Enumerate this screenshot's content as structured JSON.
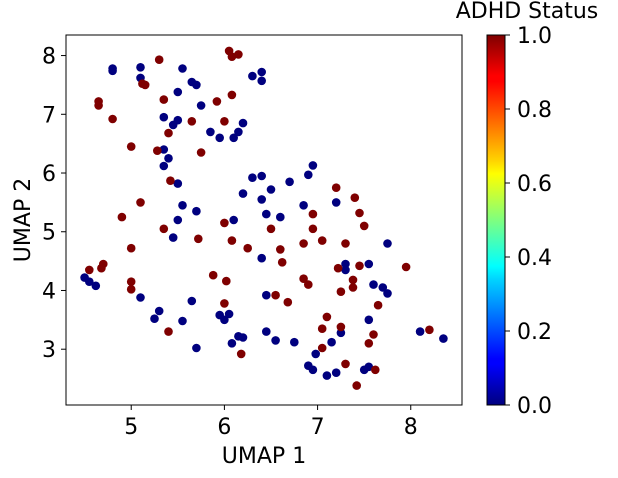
{
  "chart_data": {
    "type": "scatter",
    "title": "",
    "xlabel": "UMAP 1",
    "ylabel": "UMAP 2",
    "xlim": [
      4.3,
      8.55
    ],
    "ylim": [
      2.05,
      8.35
    ],
    "xticks": [
      5,
      6,
      7,
      8
    ],
    "yticks": [
      3,
      4,
      5,
      6,
      7,
      8
    ],
    "grid": false,
    "colorbar": {
      "label": "ADHD Status",
      "range": [
        0.0,
        1.0
      ],
      "ticks": [
        "0.0",
        "0.2",
        "0.4",
        "0.6",
        "0.8",
        "1.0"
      ],
      "colormap": "jet",
      "low_color": "#00007f",
      "high_color": "#7f0000"
    },
    "series": [
      {
        "value": 0,
        "points": [
          [
            4.8,
            7.78
          ],
          [
            4.8,
            7.74
          ],
          [
            5.1,
            7.8
          ],
          [
            5.1,
            7.62
          ],
          [
            5.55,
            7.78
          ],
          [
            5.65,
            7.55
          ],
          [
            5.7,
            7.5
          ],
          [
            6.3,
            7.65
          ],
          [
            6.4,
            7.72
          ],
          [
            6.4,
            7.57
          ],
          [
            5.5,
            7.38
          ],
          [
            5.75,
            7.15
          ],
          [
            5.45,
            6.82
          ],
          [
            5.5,
            6.9
          ],
          [
            5.35,
            6.95
          ],
          [
            5.85,
            6.7
          ],
          [
            6.1,
            6.6
          ],
          [
            5.95,
            6.6
          ],
          [
            6.2,
            6.85
          ],
          [
            6.15,
            6.7
          ],
          [
            5.35,
            6.4
          ],
          [
            5.4,
            6.25
          ],
          [
            5.35,
            6.12
          ],
          [
            5.5,
            5.82
          ],
          [
            6.3,
            5.92
          ],
          [
            6.4,
            5.95
          ],
          [
            6.5,
            5.72
          ],
          [
            6.7,
            5.85
          ],
          [
            6.95,
            6.13
          ],
          [
            6.9,
            5.97
          ],
          [
            6.4,
            5.55
          ],
          [
            5.55,
            5.45
          ],
          [
            5.7,
            5.35
          ],
          [
            5.5,
            5.2
          ],
          [
            6.1,
            5.2
          ],
          [
            6.2,
            5.65
          ],
          [
            6.45,
            5.3
          ],
          [
            6.6,
            5.25
          ],
          [
            6.85,
            5.45
          ],
          [
            7.2,
            5.5
          ],
          [
            5.45,
            4.9
          ],
          [
            6.4,
            4.55
          ],
          [
            7.3,
            4.45
          ],
          [
            7.3,
            4.35
          ],
          [
            7.55,
            4.45
          ],
          [
            7.75,
            4.8
          ],
          [
            4.5,
            4.22
          ],
          [
            4.55,
            4.15
          ],
          [
            4.62,
            4.08
          ],
          [
            5.1,
            3.88
          ],
          [
            5.3,
            3.65
          ],
          [
            5.55,
            3.48
          ],
          [
            5.65,
            3.82
          ],
          [
            5.95,
            3.58
          ],
          [
            6.0,
            3.5
          ],
          [
            6.05,
            3.6
          ],
          [
            6.08,
            3.1
          ],
          [
            6.15,
            3.22
          ],
          [
            6.2,
            3.2
          ],
          [
            6.45,
            3.92
          ],
          [
            6.45,
            3.3
          ],
          [
            6.55,
            3.15
          ],
          [
            6.75,
            3.12
          ],
          [
            6.9,
            2.72
          ],
          [
            6.95,
            2.65
          ],
          [
            6.98,
            2.92
          ],
          [
            7.1,
            2.55
          ],
          [
            7.2,
            2.6
          ],
          [
            7.25,
            3.28
          ],
          [
            7.5,
            2.65
          ],
          [
            7.55,
            3.5
          ],
          [
            7.55,
            2.7
          ],
          [
            7.7,
            4.05
          ],
          [
            7.75,
            3.95
          ],
          [
            8.1,
            3.3
          ],
          [
            8.35,
            3.18
          ],
          [
            5.25,
            3.52
          ],
          [
            5.7,
            3.02
          ],
          [
            7.15,
            3.12
          ],
          [
            7.6,
            4.1
          ]
        ]
      },
      {
        "value": 1,
        "points": [
          [
            5.3,
            7.93
          ],
          [
            6.05,
            8.08
          ],
          [
            6.15,
            8.02
          ],
          [
            6.08,
            7.98
          ],
          [
            5.12,
            7.52
          ],
          [
            5.15,
            7.5
          ],
          [
            4.65,
            7.22
          ],
          [
            4.65,
            7.15
          ],
          [
            5.35,
            7.25
          ],
          [
            6.08,
            7.33
          ],
          [
            5.92,
            7.22
          ],
          [
            4.8,
            6.92
          ],
          [
            5.65,
            6.88
          ],
          [
            5.4,
            6.68
          ],
          [
            5.75,
            6.35
          ],
          [
            5.28,
            6.38
          ],
          [
            5.0,
            6.45
          ],
          [
            5.42,
            5.87
          ],
          [
            6.0,
            6.88
          ],
          [
            5.1,
            5.5
          ],
          [
            4.9,
            5.25
          ],
          [
            5.35,
            5.05
          ],
          [
            5.72,
            4.88
          ],
          [
            5.0,
            4.72
          ],
          [
            6.0,
            5.15
          ],
          [
            6.08,
            4.85
          ],
          [
            6.25,
            4.72
          ],
          [
            6.5,
            5.05
          ],
          [
            6.6,
            4.7
          ],
          [
            6.62,
            4.48
          ],
          [
            6.85,
            4.8
          ],
          [
            6.95,
            5.3
          ],
          [
            6.95,
            5.05
          ],
          [
            7.05,
            4.85
          ],
          [
            7.2,
            5.75
          ],
          [
            7.3,
            4.8
          ],
          [
            7.4,
            5.58
          ],
          [
            7.45,
            5.32
          ],
          [
            7.5,
            5.1
          ],
          [
            7.45,
            4.42
          ],
          [
            7.22,
            4.38
          ],
          [
            7.38,
            4.18
          ],
          [
            7.38,
            4.05
          ],
          [
            7.25,
            3.98
          ],
          [
            6.85,
            4.2
          ],
          [
            6.9,
            4.1
          ],
          [
            7.05,
            3.35
          ],
          [
            7.1,
            3.55
          ],
          [
            7.25,
            3.38
          ],
          [
            7.3,
            2.75
          ],
          [
            7.42,
            2.38
          ],
          [
            7.55,
            3.1
          ],
          [
            7.6,
            3.25
          ],
          [
            7.62,
            2.65
          ],
          [
            7.65,
            3.75
          ],
          [
            7.95,
            4.4
          ],
          [
            8.2,
            3.33
          ],
          [
            4.55,
            4.35
          ],
          [
            4.7,
            4.45
          ],
          [
            4.68,
            4.38
          ],
          [
            5.0,
            4.15
          ],
          [
            5.0,
            4.02
          ],
          [
            5.4,
            3.3
          ],
          [
            5.88,
            4.26
          ],
          [
            6.02,
            4.16
          ],
          [
            6.0,
            3.78
          ],
          [
            6.18,
            2.92
          ],
          [
            6.55,
            3.92
          ],
          [
            6.68,
            3.8
          ],
          [
            7.05,
            3.02
          ]
        ]
      }
    ]
  }
}
